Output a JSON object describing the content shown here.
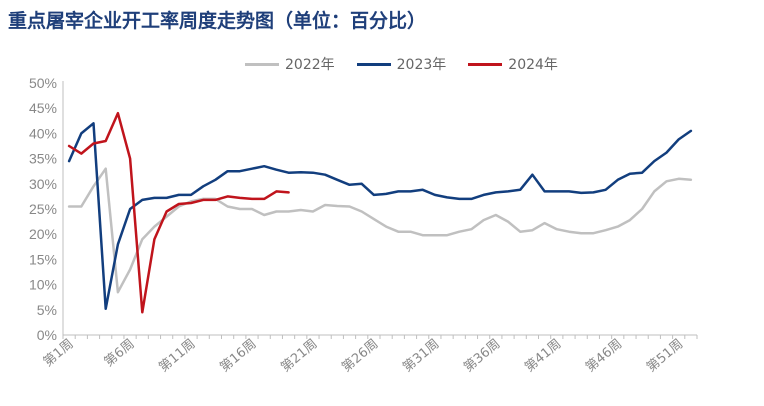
{
  "title": "重点屠宰企业开工率周度走势图（单位：百分比）",
  "chart_data": {
    "type": "line",
    "title": "重点屠宰企业开工率周度走势图（单位：百分比）",
    "xlabel": "",
    "ylabel": "",
    "ylim": [
      0,
      50
    ],
    "yticks": [
      "0%",
      "5%",
      "10%",
      "15%",
      "20%",
      "25%",
      "30%",
      "35%",
      "40%",
      "45%",
      "50%"
    ],
    "x_tick_labels": [
      "第1周",
      "第6周",
      "第11周",
      "第16周",
      "第21周",
      "第26周",
      "第31周",
      "第36周",
      "第41周",
      "第46周",
      "第51周"
    ],
    "x_tick_weeks": [
      1,
      6,
      11,
      16,
      21,
      26,
      31,
      36,
      41,
      46,
      51
    ],
    "legend_position": "top",
    "grid": false,
    "series": [
      {
        "name": "2022年",
        "color": "#c0c0c0",
        "values": [
          25.5,
          25.5,
          29.5,
          33,
          8.5,
          13,
          19,
          21.5,
          23.5,
          25.5,
          26.5,
          27,
          27,
          25.5,
          25,
          25,
          23.8,
          24.5,
          24.5,
          24.8,
          24.5,
          25.8,
          25.6,
          25.5,
          24.5,
          23,
          21.5,
          20.5,
          20.5,
          19.8,
          19.8,
          19.8,
          20.5,
          21,
          22.8,
          23.8,
          22.5,
          20.5,
          20.8,
          22.2,
          21,
          20.5,
          20.2,
          20.2,
          20.8,
          21.5,
          22.8,
          25,
          28.5,
          30.5,
          31,
          30.8
        ]
      },
      {
        "name": "2023年",
        "color": "#123e7e",
        "values": [
          34.5,
          40,
          42,
          5.2,
          18,
          25,
          26.8,
          27.2,
          27.2,
          27.8,
          27.8,
          29.5,
          30.8,
          32.5,
          32.5,
          33,
          33.5,
          32.8,
          32.2,
          32.3,
          32.2,
          31.8,
          30.8,
          29.8,
          30,
          27.8,
          28,
          28.5,
          28.5,
          28.8,
          27.8,
          27.3,
          27,
          27,
          27.8,
          28.3,
          28.5,
          28.8,
          31.8,
          28.5,
          28.5,
          28.5,
          28.2,
          28.3,
          28.8,
          30.8,
          32,
          32.2,
          34.5,
          36.2,
          38.8,
          40.5
        ]
      },
      {
        "name": "2024年",
        "color": "#c0141c",
        "values": [
          37.5,
          36,
          38,
          38.5,
          44,
          35,
          4.5,
          19,
          24.5,
          26,
          26.2,
          26.8,
          26.8,
          27.5,
          27.2,
          27,
          27,
          28.5,
          28.3
        ]
      }
    ]
  }
}
